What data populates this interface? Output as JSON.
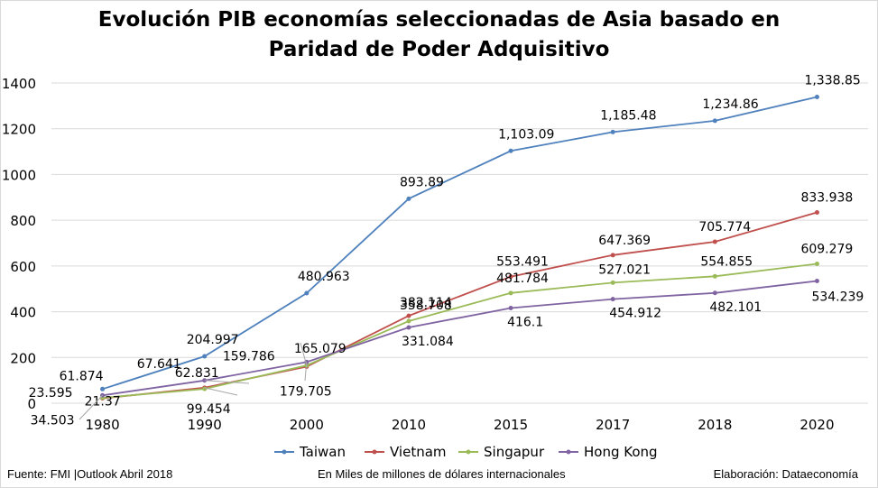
{
  "chart_data": {
    "type": "line",
    "title_line1": "Evolución PIB economías seleccionadas de Asia basado en",
    "title_line2": "Paridad de Poder Adquisitivo",
    "categories": [
      "1980",
      "1990",
      "2000",
      "2010",
      "2015",
      "2017",
      "2018",
      "2020"
    ],
    "ylim": [
      0,
      1400
    ],
    "yticks": [
      "0",
      "200",
      "400",
      "600",
      "800",
      "1000",
      "1200",
      "1400"
    ],
    "grid": true,
    "legend_position": "bottom",
    "series": [
      {
        "name": "Taiwan",
        "color": "#4f81bd",
        "values": [
          61.874,
          204.997,
          480.963,
          893.89,
          1103.09,
          1185.48,
          1234.86,
          1338.85
        ],
        "labels": [
          "61.874",
          "204.997",
          "480.963",
          "893.89",
          "1,103.09",
          "1,185.48",
          "1,234.86",
          "1,338.85"
        ]
      },
      {
        "name": "Vietnam",
        "color": "#c0504d",
        "values": [
          21.37,
          67.641,
          159.786,
          382.114,
          553.491,
          647.369,
          705.774,
          833.938
        ],
        "labels": [
          "21.37",
          "67.641",
          "159.786",
          "382.114",
          "553.491",
          "647.369",
          "705.774",
          "833.938"
        ]
      },
      {
        "name": "Singapur",
        "color": "#9bbb59",
        "values": [
          23.595,
          62.831,
          165.079,
          358.708,
          481.784,
          527.021,
          554.855,
          609.279
        ],
        "labels": [
          "23.595",
          "62.831",
          "165.079",
          "358.708",
          "481.784",
          "527.021",
          "554.855",
          "609.279"
        ]
      },
      {
        "name": "Hong Kong",
        "color": "#8064a2",
        "values": [
          34.503,
          99.454,
          179.705,
          331.084,
          416.1,
          454.912,
          482.101,
          534.239
        ],
        "labels": [
          "34.503",
          "99.454",
          "179.705",
          "331.084",
          "416.1",
          "454.912",
          "482.101",
          "534.239"
        ]
      }
    ]
  },
  "footer": {
    "source": "Fuente: FMI |Outlook Abril 2018",
    "unit": "En Miles de millones de dólares internacionales",
    "credit": "Elaboración: Dataeconomía"
  }
}
